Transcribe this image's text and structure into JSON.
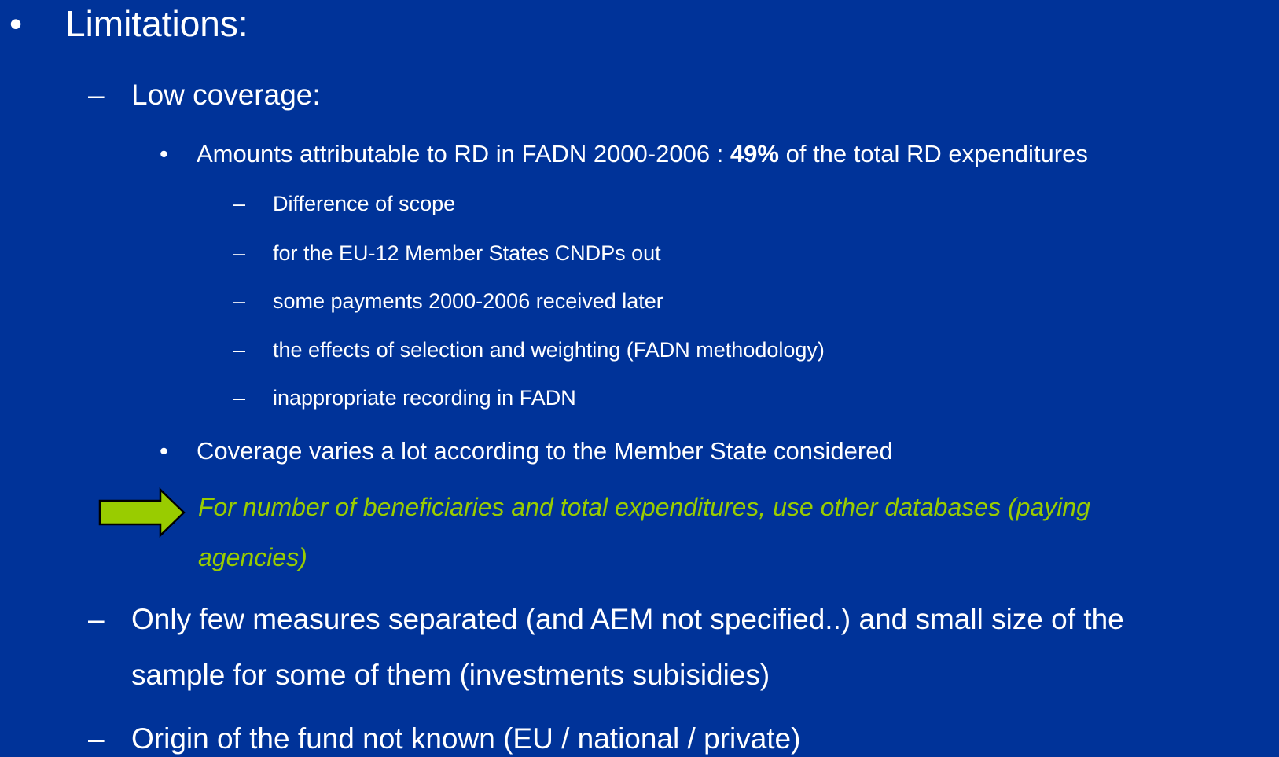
{
  "slide": {
    "background": "#003399",
    "items": [
      {
        "marker": "•",
        "lines": [
          "Limitations:"
        ]
      },
      {
        "marker": "–",
        "lines": [
          "Low coverage:"
        ]
      },
      {
        "marker": "•",
        "segments": [
          {
            "text": "Amounts attributable to RD in FADN 2000-2006 : "
          },
          {
            "text": "49%",
            "bold": true
          },
          {
            "text": " of the total RD expenditures"
          }
        ]
      },
      {
        "marker": "–",
        "lines": [
          "Difference of scope"
        ]
      },
      {
        "marker": "–",
        "lines": [
          "for the EU-12 Member States CNDPs out"
        ]
      },
      {
        "marker": "–",
        "lines": [
          "some payments 2000-2006 received later"
        ]
      },
      {
        "marker": "–",
        "lines": [
          "the effects of selection and weighting (FADN methodology)"
        ]
      },
      {
        "marker": "–",
        "lines": [
          "inappropriate recording in FADN"
        ]
      },
      {
        "marker": "•",
        "lines": [
          "Coverage varies a lot according to the Member State considered"
        ]
      },
      {
        "color": "#99cc00",
        "italic": true,
        "lines": [
          "For number of beneficiaries and total expenditures, use other databases (paying",
          "agencies)"
        ]
      },
      {
        "marker": "–",
        "lines": [
          "Only few measures separated (and AEM not specified..) and small size of the",
          "sample for some of them (investments subisidies)"
        ]
      },
      {
        "marker": "–",
        "lines": [
          "Origin of the fund not known (EU / national / private)"
        ]
      }
    ]
  }
}
